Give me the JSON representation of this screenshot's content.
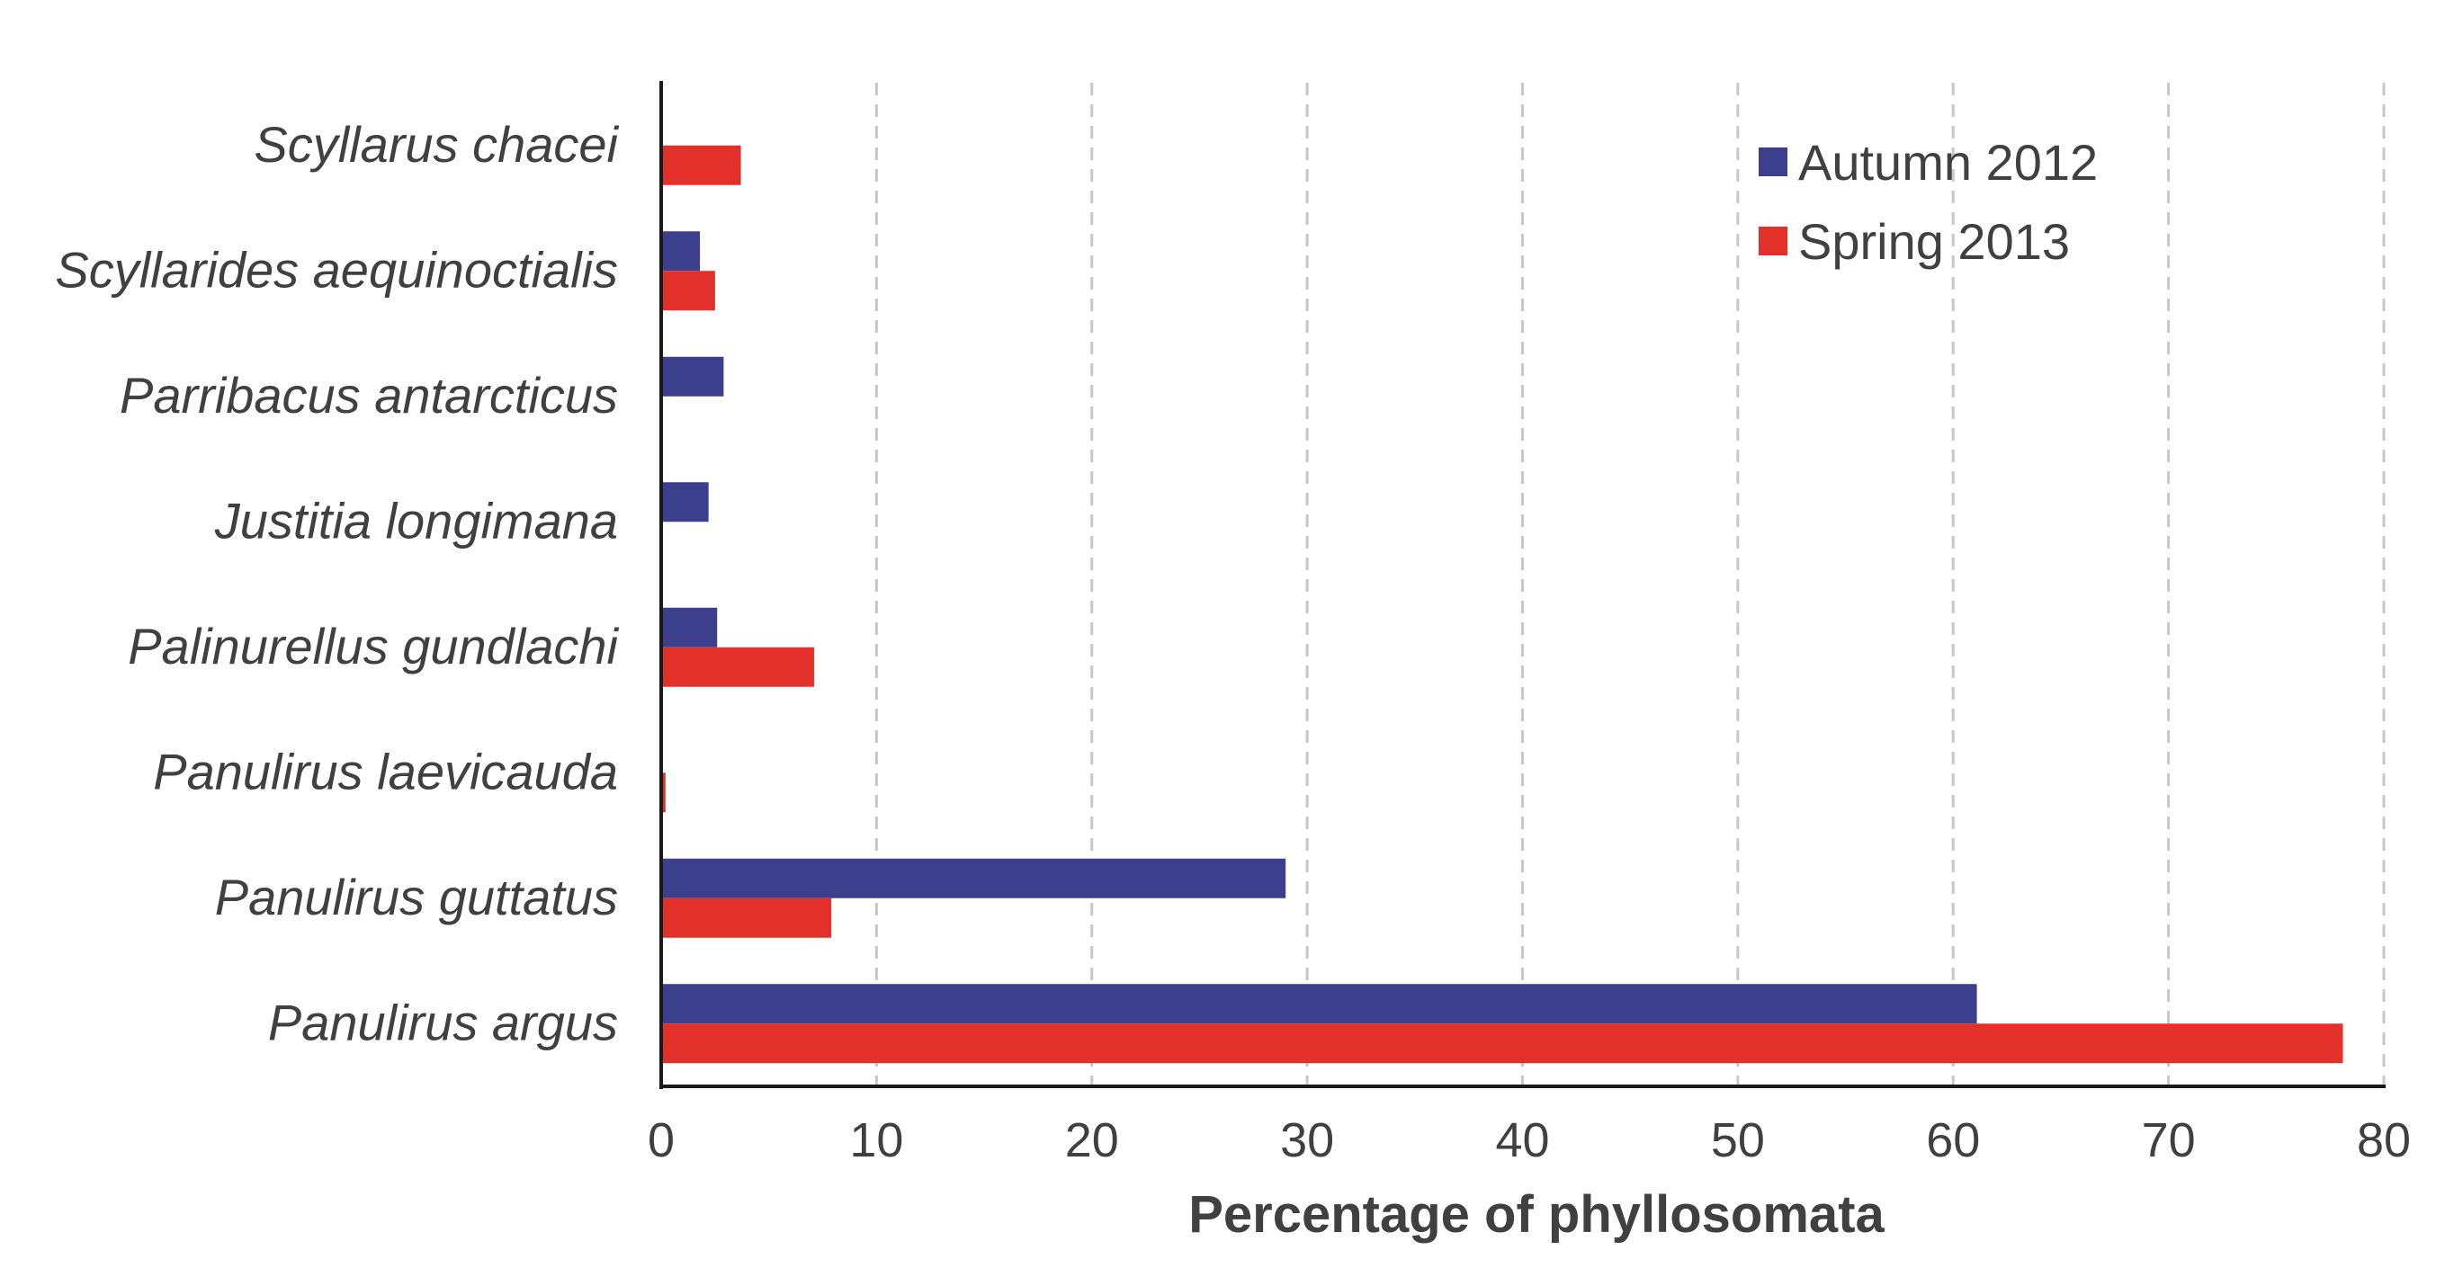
{
  "chart_data": {
    "type": "bar",
    "orientation": "horizontal",
    "title": "",
    "xlabel": "Percentage of phyllosomata",
    "ylabel": "",
    "xlim": [
      0,
      80
    ],
    "xticks": [
      0,
      10,
      20,
      30,
      40,
      50,
      60,
      70,
      80
    ],
    "grid": "vertical-dashed",
    "legend_position": "top-right",
    "categories": [
      "Scyllarus chacei",
      "Scyllarides aequinoctialis",
      "Parribacus antarcticus",
      "Justitia longimana",
      "Palinurellus gundlachi",
      "Panulirus laevicauda",
      "Panulirus guttatus",
      "Panulirus argus"
    ],
    "series": [
      {
        "name": "Autumn 2012",
        "color": "#3b3f8c",
        "values": [
          0,
          1.8,
          2.9,
          2.2,
          2.6,
          0,
          29.0,
          61.1
        ]
      },
      {
        "name": "Spring 2013",
        "color": "#e2312a",
        "values": [
          3.7,
          2.5,
          0,
          0,
          7.1,
          0.2,
          7.9,
          78.1
        ]
      }
    ]
  }
}
